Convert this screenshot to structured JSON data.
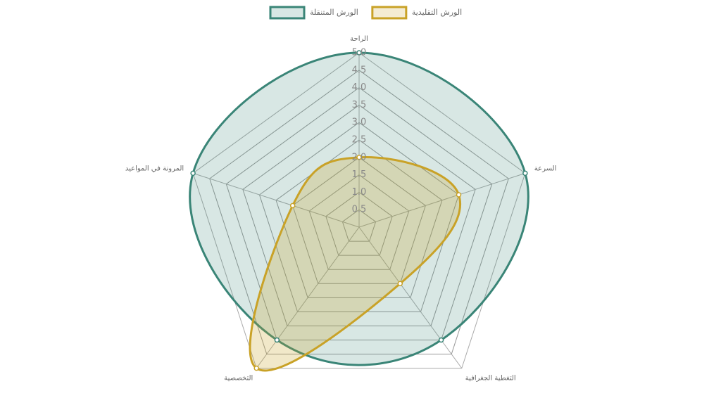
{
  "chart_data": {
    "type": "radar",
    "categories": [
      "الراحة",
      "السرعة",
      "التغطية الجغرافية",
      "التخصصية",
      "المرونة في المواعيد"
    ],
    "series": [
      {
        "name": "الورش المتنقلة",
        "color": "#3a8577",
        "values": [
          5,
          5,
          4,
          4,
          5
        ]
      },
      {
        "name": "الورش التقليدية",
        "color": "#c9a227",
        "values": [
          2,
          3,
          2,
          5,
          2
        ]
      }
    ],
    "rlim": [
      0,
      5
    ],
    "rticks": [
      {
        "value": 0.5,
        "label": "0.5"
      },
      {
        "value": 1,
        "label": "1.0"
      },
      {
        "value": 1.5,
        "label": "1.5"
      },
      {
        "value": 2,
        "label": "2.0"
      },
      {
        "value": 2.5,
        "label": "2.5"
      },
      {
        "value": 3,
        "label": "3.0"
      },
      {
        "value": 3.5,
        "label": "3.5"
      },
      {
        "value": 4,
        "label": "4.0"
      },
      {
        "value": 4.5,
        "label": "4.5"
      },
      {
        "value": 5,
        "label": "5.0"
      }
    ],
    "legend": "top",
    "grid": true
  }
}
